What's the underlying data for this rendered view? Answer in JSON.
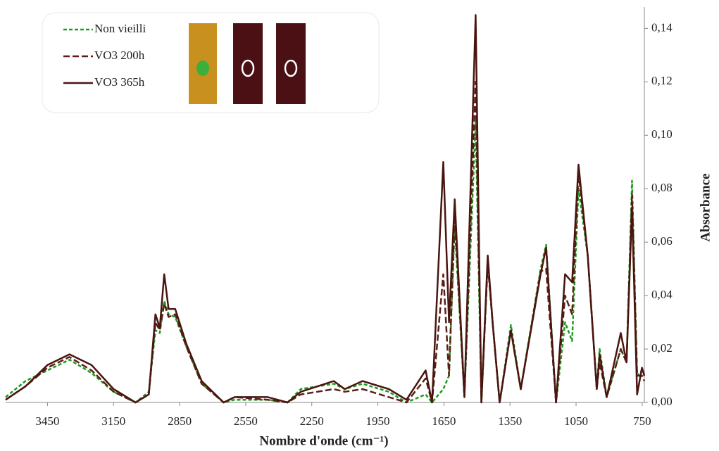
{
  "chart_data": {
    "type": "line",
    "x_label": "Nombre d'onde (cm⁻¹)",
    "y_label": "Absorbance",
    "x": [
      3640,
      3550,
      3450,
      3350,
      3250,
      3150,
      3050,
      2990,
      2960,
      2940,
      2920,
      2900,
      2870,
      2820,
      2750,
      2650,
      2600,
      2450,
      2360,
      2300,
      2150,
      2100,
      2020,
      1900,
      1820,
      1733,
      1704,
      1653,
      1627,
      1601,
      1557,
      1506,
      1480,
      1451,
      1429,
      1397,
      1346,
      1301,
      1211,
      1186,
      1141,
      1100,
      1068,
      1039,
      997,
      956,
      943,
      911,
      847,
      821,
      796,
      773,
      751,
      740
    ],
    "series": [
      {
        "name": "Non vieilli",
        "color": "#1e9a1e",
        "dash": "5,3",
        "values": [
          0.002,
          0.008,
          0.012,
          0.016,
          0.011,
          0.004,
          0,
          0.004,
          0.027,
          0.026,
          0.038,
          0.033,
          0.032,
          0.021,
          0.007,
          0,
          0.001,
          0.001,
          0,
          0.005,
          0.007,
          0.005,
          0.007,
          0.004,
          0,
          0.003,
          0,
          0.005,
          0.01,
          0.066,
          0.002,
          0.105,
          0,
          0.054,
          0.03,
          0,
          0.029,
          0.005,
          0.05,
          0.059,
          0,
          0.03,
          0.023,
          0.08,
          0.055,
          0.005,
          0.02,
          0.002,
          0.02,
          0.015,
          0.083,
          0.01,
          0.012,
          0.01
        ]
      },
      {
        "name": "VO3 200h",
        "color": "#5a2018",
        "dash": "9,4",
        "values": [
          0.001,
          0.006,
          0.013,
          0.017,
          0.012,
          0.004,
          0,
          0.003,
          0.03,
          0.027,
          0.037,
          0.032,
          0.033,
          0.021,
          0.007,
          0,
          0.002,
          0.001,
          0,
          0.003,
          0.005,
          0.004,
          0.005,
          0.002,
          0,
          0.009,
          0,
          0.048,
          0.01,
          0.07,
          0.002,
          0.12,
          0,
          0.052,
          0.03,
          0,
          0.027,
          0.005,
          0.049,
          0.05,
          0,
          0.04,
          0.033,
          0.086,
          0.055,
          0.005,
          0.015,
          0.002,
          0.02,
          0.015,
          0.078,
          0.01,
          0.01,
          0.008
        ]
      },
      {
        "name": "VO3 365h",
        "color": "#4a1510",
        "dash": "none",
        "values": [
          0.001,
          0.006,
          0.014,
          0.018,
          0.014,
          0.005,
          0,
          0.003,
          0.033,
          0.028,
          0.048,
          0.035,
          0.035,
          0.022,
          0.008,
          0,
          0.002,
          0.002,
          0,
          0.004,
          0.008,
          0.005,
          0.008,
          0.005,
          0.001,
          0.012,
          0,
          0.09,
          0.03,
          0.076,
          0.002,
          0.145,
          0,
          0.055,
          0.03,
          0,
          0.027,
          0.005,
          0.048,
          0.058,
          0,
          0.048,
          0.045,
          0.089,
          0.055,
          0.005,
          0.018,
          0.002,
          0.026,
          0.015,
          0.073,
          0.003,
          0.013,
          0.01
        ]
      }
    ],
    "xlim": [
      3640,
      740
    ],
    "xticks": [
      3450,
      3150,
      2850,
      2550,
      2250,
      1950,
      1650,
      1350,
      1050,
      750
    ],
    "ylim": [
      0,
      0.148
    ],
    "yticks": [
      {
        "value": 0,
        "label": "0,00"
      },
      {
        "value": 0.02,
        "label": "0,02"
      },
      {
        "value": 0.04,
        "label": "0,04"
      },
      {
        "value": 0.06,
        "label": "0,06"
      },
      {
        "value": 0.08,
        "label": "0,08"
      },
      {
        "value": 0.1,
        "label": "0,10"
      },
      {
        "value": 0.12,
        "label": "0,12"
      },
      {
        "value": 0.14,
        "label": "0,14"
      }
    ],
    "y_axis_side": "right"
  }
}
